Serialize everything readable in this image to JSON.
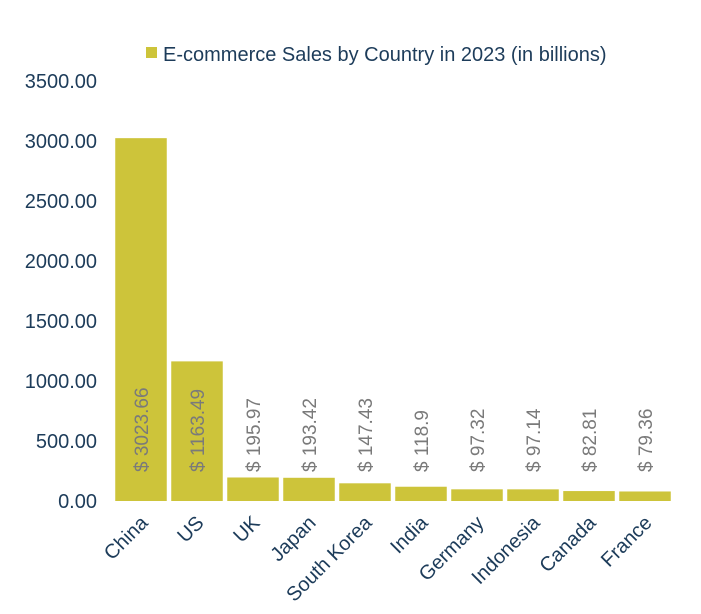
{
  "chart_data": {
    "type": "bar",
    "categories": [
      "China",
      "US",
      "UK",
      "Japan",
      "South Korea",
      "India",
      "Germany",
      "Indonesia",
      "Canada",
      "France"
    ],
    "series": [
      {
        "name": "E-commerce Sales by Country in 2023 (in billions)",
        "values": [
          3023.66,
          1163.49,
          195.97,
          193.42,
          147.43,
          118.9,
          97.32,
          97.14,
          82.81,
          79.36
        ]
      }
    ],
    "data_labels": [
      "$ 3023.66",
      "$ 1163.49",
      "$ 195.97",
      "$ 193.42",
      "$ 147.43",
      "$ 118.9",
      "$ 97.32",
      "$ 97.14",
      "$ 82.81",
      "$ 79.36"
    ],
    "yticks": [
      "0.00",
      "500.00",
      "1000.00",
      "1500.00",
      "2000.00",
      "2500.00",
      "3000.00",
      "3500.00"
    ],
    "ylim": [
      0,
      3500
    ],
    "grid": false,
    "legend_position": "top",
    "colors": {
      "bar": "#cdc43a",
      "axis_text": "#1d3c5a",
      "data_label": "#7a7a7a"
    }
  }
}
